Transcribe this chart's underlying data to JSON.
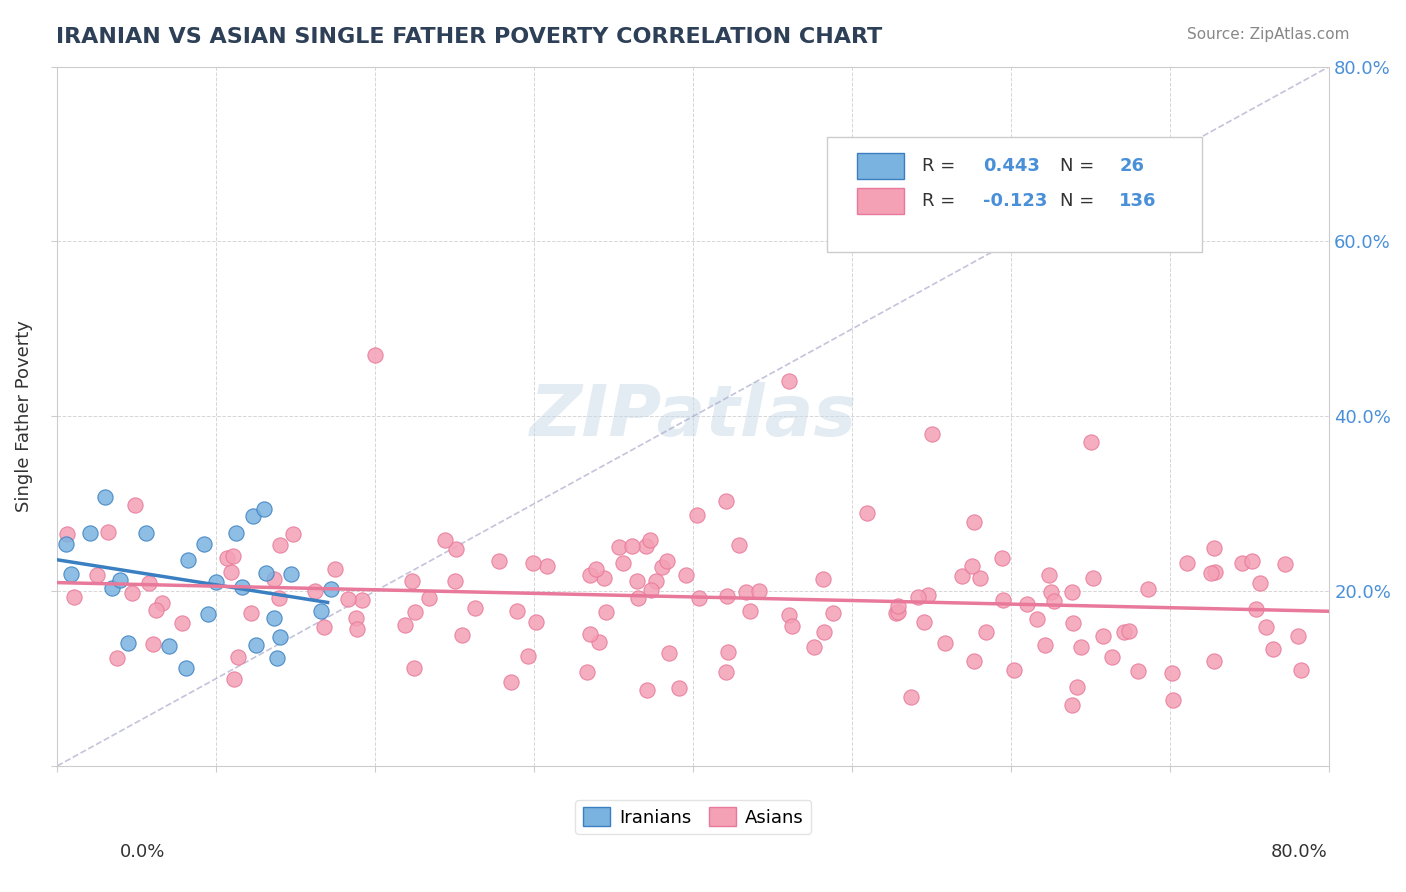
{
  "title": "IRANIAN VS ASIAN SINGLE FATHER POVERTY CORRELATION CHART",
  "source": "Source: ZipAtlas.com",
  "ylabel": "Single Father Poverty",
  "legend_iranians": "Iranians",
  "legend_asians": "Asians",
  "iranian_R": "0.443",
  "iranian_N": "26",
  "asian_R": "-0.123",
  "asian_N": "136",
  "title_color": "#2e4057",
  "iranian_color": "#7ab3e0",
  "asian_color": "#f4a0b5",
  "iranian_line_color": "#3a7fc1",
  "asian_line_color": "#e8799a",
  "watermark_color": "#c8d8e8",
  "background_color": "#ffffff",
  "grid_color": "#cccccc",
  "xlim": [
    0.0,
    0.8
  ],
  "ylim": [
    0.0,
    0.8
  ]
}
